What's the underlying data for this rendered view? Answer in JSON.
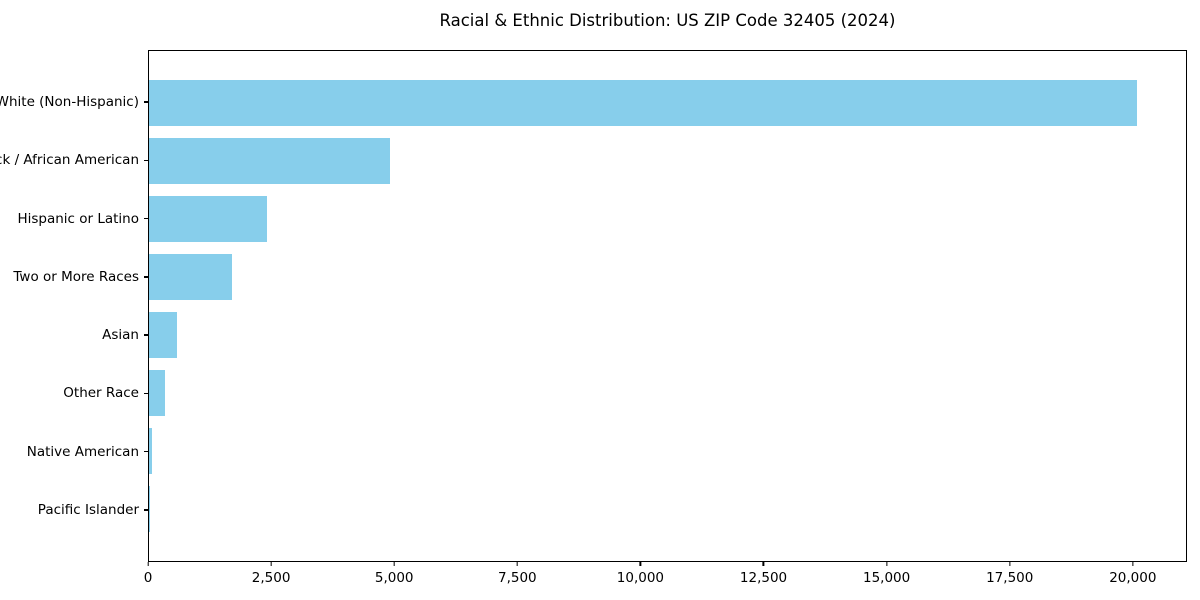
{
  "chart_data": {
    "type": "bar",
    "orientation": "horizontal",
    "title": "Racial & Ethnic Distribution: US ZIP Code 32405 (2024)",
    "xlabel": "",
    "ylabel": "",
    "categories": [
      "White (Non-Hispanic)",
      "Black / African American",
      "Hispanic or Latino",
      "Two or More Races",
      "Asian",
      "Other Race",
      "Native American",
      "Pacific Islander"
    ],
    "values": [
      20100,
      4900,
      2400,
      1680,
      575,
      320,
      60,
      10
    ],
    "xlim": [
      0,
      21100
    ],
    "xticks": [
      0,
      2500,
      5000,
      7500,
      10000,
      12500,
      15000,
      17500,
      20000
    ],
    "xtick_labels": [
      "0",
      "2,500",
      "5,000",
      "7,500",
      "10,000",
      "12,500",
      "15,000",
      "17,500",
      "20,000"
    ],
    "grid": false,
    "legend": null,
    "bar_color": "#87CEEB",
    "axis_color": "#000000",
    "background_color": "#FFFFFF"
  }
}
